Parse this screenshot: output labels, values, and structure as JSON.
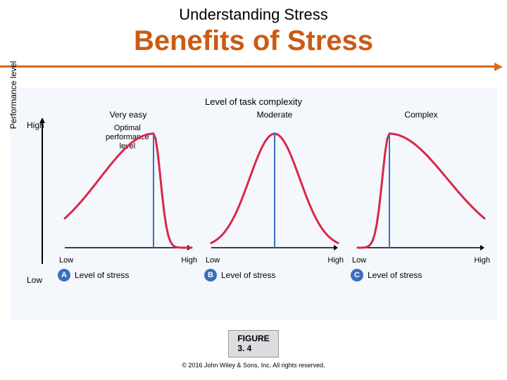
{
  "header": {
    "subtitle": "Understanding Stress",
    "title": "Benefits of Stress"
  },
  "divider_color": "#d86a1e",
  "figure": {
    "background": "#f4f7fb",
    "complexity_title": "Level of task complexity",
    "y_axis": {
      "label": "Performance level",
      "high": "High",
      "low": "Low"
    },
    "curve_color": "#d9274a",
    "axis_color": "#000000",
    "vline_color": "#3a6fbf",
    "panels": [
      {
        "badge": "A",
        "top_label": "Very easy",
        "sub_label": "Optimal\nperformance\nlevel",
        "x_low": "Low",
        "x_high": "High",
        "footer": "Level of stress",
        "curve": {
          "type": "skewed-right",
          "vline_x": 0.7
        }
      },
      {
        "badge": "B",
        "top_label": "Moderate",
        "sub_label": "",
        "x_low": "Low",
        "x_high": "High",
        "footer": "Level of stress",
        "curve": {
          "type": "symmetric",
          "vline_x": 0.5
        }
      },
      {
        "badge": "C",
        "top_label": "Complex",
        "sub_label": "",
        "x_low": "Low",
        "x_high": "High",
        "footer": "Level of stress",
        "curve": {
          "type": "skewed-left",
          "vline_x": 0.25
        }
      }
    ]
  },
  "caption": {
    "line1": "FIGURE",
    "line2": "3. 4"
  },
  "copyright": "© 2016 John Wiley & Sons, Inc. All rights reserved."
}
